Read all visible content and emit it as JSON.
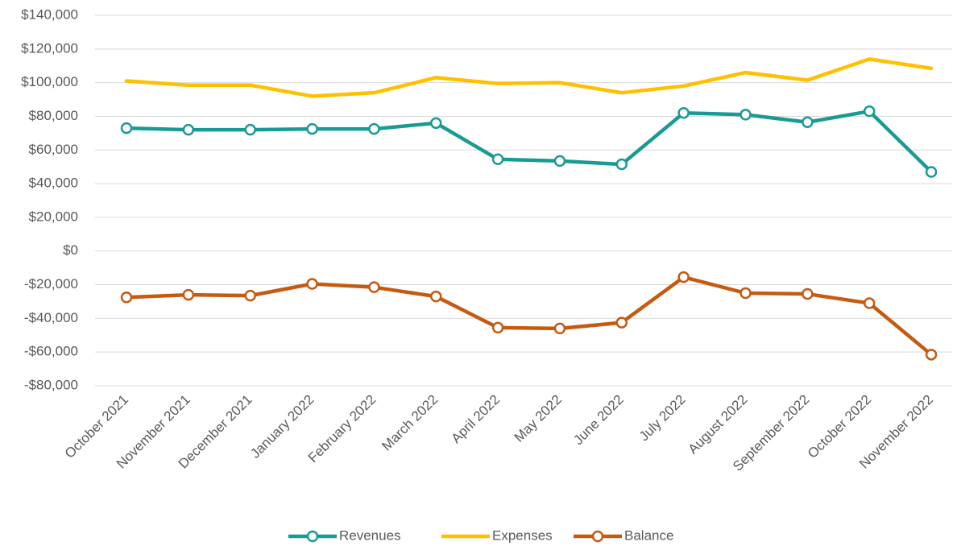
{
  "chart_data": {
    "type": "line",
    "categories": [
      "October 2021",
      "November 2021",
      "December 2021",
      "January 2022",
      "February 2022",
      "March 2022",
      "April 2022",
      "May 2022",
      "June 2022",
      "July 2022",
      "August 2022",
      "September 2022",
      "October 2022",
      "November 2022"
    ],
    "series": [
      {
        "name": "Revenues",
        "color": "#1a9a94",
        "marker": true,
        "values": [
          73000,
          72000,
          72000,
          72500,
          72500,
          76000,
          54500,
          53500,
          51500,
          82000,
          81000,
          76500,
          83000,
          47000
        ]
      },
      {
        "name": "Expenses",
        "color": "#ffc000",
        "marker": false,
        "values": [
          101000,
          98500,
          98500,
          92000,
          94000,
          103000,
          99500,
          100000,
          94000,
          98000,
          106000,
          101500,
          114000,
          108500
        ]
      },
      {
        "name": "Balance",
        "color": "#c55a11",
        "marker": true,
        "values": [
          -27500,
          -26000,
          -26500,
          -19500,
          -21500,
          -27000,
          -45500,
          -46000,
          -42500,
          -15500,
          -25000,
          -25500,
          -31000,
          -61500
        ]
      }
    ],
    "ylim": [
      -80000,
      140000
    ],
    "yticks": [
      {
        "value": -80000,
        "label": "-$80,000"
      },
      {
        "value": -60000,
        "label": "-$60,000"
      },
      {
        "value": -40000,
        "label": "-$40,000"
      },
      {
        "value": -20000,
        "label": "-$20,000"
      },
      {
        "value": 0,
        "label": "$0"
      },
      {
        "value": 20000,
        "label": "$20,000"
      },
      {
        "value": 40000,
        "label": "$40,000"
      },
      {
        "value": 60000,
        "label": "$60,000"
      },
      {
        "value": 80000,
        "label": "$80,000"
      },
      {
        "value": 100000,
        "label": "$100,000"
      },
      {
        "value": 120000,
        "label": "$120,000"
      },
      {
        "value": 140000,
        "label": "$140,000"
      }
    ],
    "grid": true,
    "legend": "bottom"
  }
}
